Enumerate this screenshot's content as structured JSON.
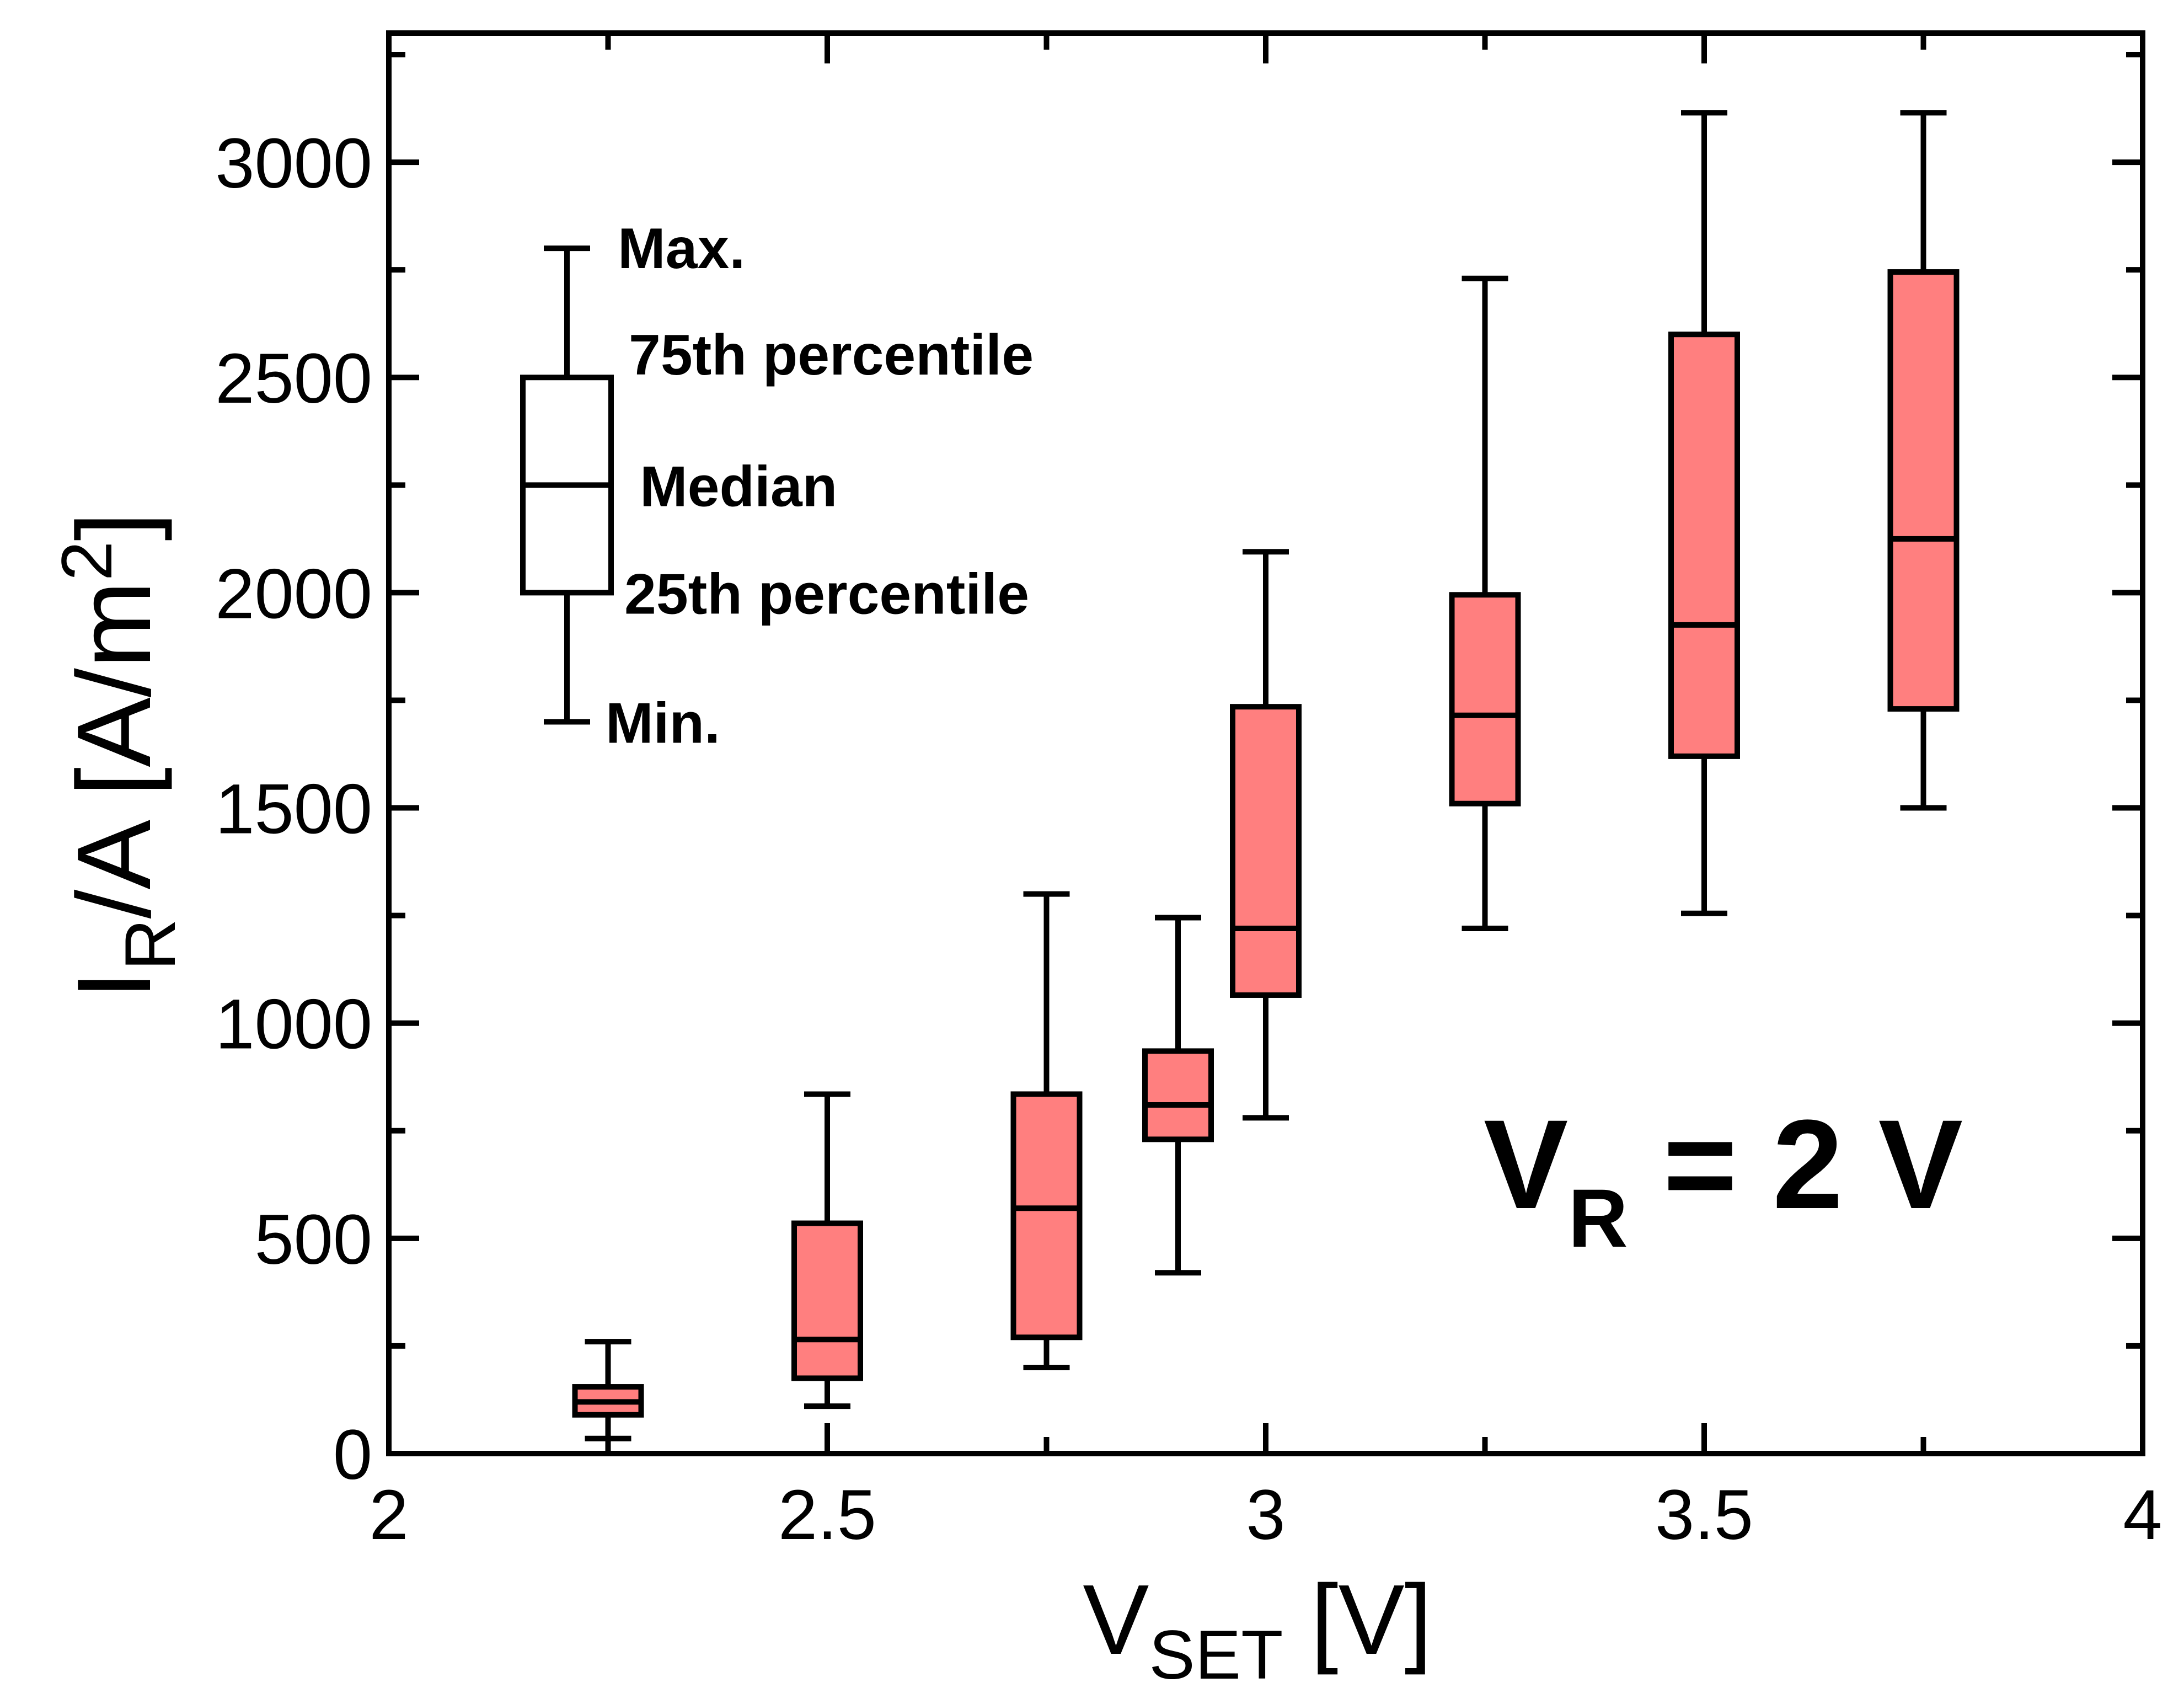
{
  "chart_data": {
    "type": "box",
    "xlabel": {
      "main": "V",
      "sub": "SET",
      "unit": " [V]"
    },
    "ylabel": {
      "main": "I",
      "sub": "R",
      "rest": "/A [A/m",
      "sup": "2",
      "close": "]"
    },
    "xlim": [
      2,
      4
    ],
    "ylim": [
      0,
      3300
    ],
    "x_ticks": [
      2,
      2.5,
      3,
      3.5,
      4
    ],
    "x_tick_labels": [
      "2",
      "2.5",
      "3",
      "3.5",
      "4"
    ],
    "x_minor_ticks": [
      2.25,
      2.75,
      3.25,
      3.75
    ],
    "y_ticks": [
      0,
      500,
      1000,
      1500,
      2000,
      2500,
      3000
    ],
    "y_tick_labels": [
      "0",
      "500",
      "1000",
      "1500",
      "2000",
      "2500",
      "3000"
    ],
    "y_minor_ticks": [
      250,
      750,
      1250,
      1750,
      2250,
      2750,
      3250
    ],
    "box_color": "#ff7f7f",
    "boxes": [
      {
        "x": 2.25,
        "min": 35,
        "q1": 90,
        "median": 120,
        "q3": 155,
        "max": 260
      },
      {
        "x": 2.5,
        "min": 110,
        "q1": 175,
        "median": 265,
        "q3": 535,
        "max": 835
      },
      {
        "x": 2.75,
        "min": 200,
        "q1": 270,
        "median": 570,
        "q3": 835,
        "max": 1300
      },
      {
        "x": 2.9,
        "min": 420,
        "q1": 730,
        "median": 810,
        "q3": 935,
        "max": 1245
      },
      {
        "x": 3.0,
        "min": 780,
        "q1": 1065,
        "median": 1220,
        "q3": 1735,
        "max": 2095
      },
      {
        "x": 3.25,
        "min": 1220,
        "q1": 1510,
        "median": 1715,
        "q3": 1995,
        "max": 2730
      },
      {
        "x": 3.5,
        "min": 1255,
        "q1": 1620,
        "median": 1925,
        "q3": 2600,
        "max": 3115
      },
      {
        "x": 3.75,
        "min": 1500,
        "q1": 1730,
        "median": 2125,
        "q3": 2745,
        "max": 3115
      }
    ],
    "legend": {
      "placement": "top-left",
      "example": {
        "min": 1700,
        "q1": 2000,
        "median": 2250,
        "q3": 2500,
        "max": 2800
      },
      "labels": {
        "max": "Max.",
        "q3": "75th percentile",
        "median": "Median",
        "q1": "25th percentile",
        "min": "Min."
      }
    },
    "annotation": {
      "main": "V",
      "sub": "R",
      "rest": " = 2 V",
      "placement": "lower-right"
    }
  }
}
